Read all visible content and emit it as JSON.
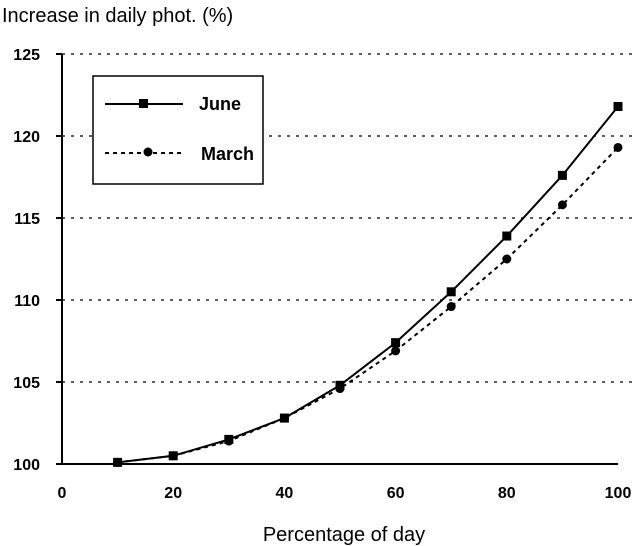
{
  "chart_data": {
    "type": "line",
    "title": "",
    "ylabel": "Increase in daily phot. (%)",
    "xlabel": "Percentage of day",
    "xlim": [
      0,
      100
    ],
    "ylim": [
      100,
      125
    ],
    "x_ticks": [
      0,
      20,
      40,
      60,
      80,
      100
    ],
    "y_ticks": [
      100,
      105,
      110,
      115,
      120,
      125
    ],
    "grid": "horizontal dotted",
    "legend_position": "top-left",
    "series": [
      {
        "name": "June",
        "style": "solid",
        "marker": "square",
        "x": [
          10,
          20,
          30,
          40,
          50,
          60,
          70,
          80,
          90,
          100
        ],
        "y": [
          100.1,
          100.5,
          101.5,
          102.8,
          104.8,
          107.4,
          110.5,
          113.9,
          117.6,
          121.8
        ]
      },
      {
        "name": "March",
        "style": "dashed",
        "marker": "circle",
        "x": [
          10,
          20,
          30,
          40,
          50,
          60,
          70,
          80,
          90,
          100
        ],
        "y": [
          100.1,
          100.5,
          101.4,
          102.8,
          104.6,
          106.9,
          109.6,
          112.5,
          115.8,
          119.3
        ]
      }
    ]
  }
}
